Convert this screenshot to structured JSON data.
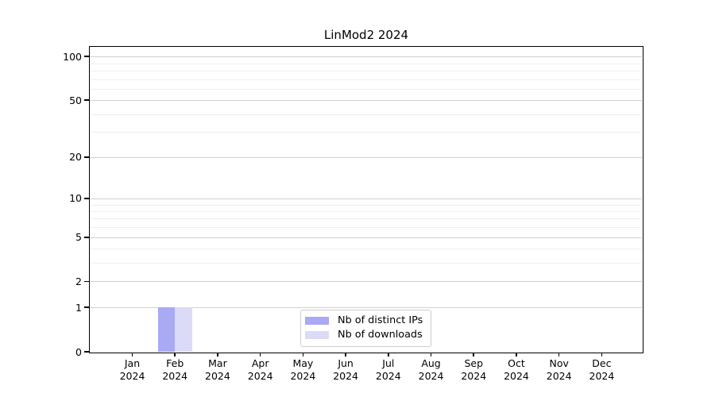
{
  "title": "LinMod2 2024",
  "chart_data": {
    "type": "bar",
    "title": "LinMod2 2024",
    "categories": [
      "Jan",
      "Feb",
      "Mar",
      "Apr",
      "May",
      "Jun",
      "Jul",
      "Aug",
      "Sep",
      "Oct",
      "Nov",
      "Dec"
    ],
    "category_year": "2024",
    "series": [
      {
        "name": "Nb of distinct IPs",
        "color": "#a9a9f4",
        "values": [
          0,
          1,
          0,
          0,
          0,
          0,
          0,
          0,
          0,
          0,
          0,
          0
        ]
      },
      {
        "name": "Nb of downloads",
        "color": "#dbdbf8",
        "values": [
          0,
          1,
          0,
          0,
          0,
          0,
          0,
          0,
          0,
          0,
          0,
          0
        ]
      }
    ],
    "y_scale": "log1p",
    "y_axis": {
      "major_ticks": [
        0,
        1,
        2,
        5,
        10,
        20,
        50,
        100
      ],
      "minor_ticks": [
        3,
        4,
        6,
        7,
        8,
        9,
        30,
        40,
        60,
        70,
        80,
        90
      ],
      "max": 116
    },
    "grid": true,
    "legend_position": "lower center",
    "colors": {
      "major_grid": "#d0d0d0",
      "minor_grid": "#efefef",
      "spine": "#000000",
      "background": "#ffffff"
    }
  }
}
